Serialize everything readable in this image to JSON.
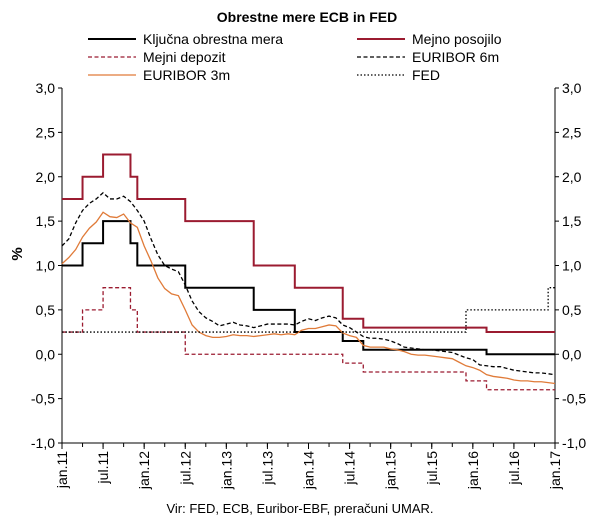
{
  "chart_data": {
    "type": "line",
    "title": "Obrestne mere ECB in FED",
    "ylabel": "%",
    "source": "Vir: FED, ECB, Euribor-EBF, preračuni UMAR.",
    "ylim": [
      -1.0,
      3.0
    ],
    "xlim": [
      "2011-01",
      "2017-01"
    ],
    "y_ticks": [
      "3,0",
      "2,5",
      "2,0",
      "1,5",
      "1,0",
      "0,5",
      "0,0",
      "-0,5",
      "-1,0"
    ],
    "y_tick_values": [
      3.0,
      2.5,
      2.0,
      1.5,
      1.0,
      0.5,
      0.0,
      -0.5,
      -1.0
    ],
    "x_ticks": [
      "jan.11",
      "jul.11",
      "jan.12",
      "jul.12",
      "jan.13",
      "jul.13",
      "jan.14",
      "jul.14",
      "jan.15",
      "jul.15",
      "jan.16",
      "jul.16",
      "jan.17"
    ],
    "x_tick_dates": [
      "2011-01",
      "2011-07",
      "2012-01",
      "2012-07",
      "2013-01",
      "2013-07",
      "2014-01",
      "2014-07",
      "2015-01",
      "2015-07",
      "2016-01",
      "2016-07",
      "2017-01"
    ],
    "grid": false,
    "legend_position": "top",
    "series": [
      {
        "name": "Ključna obrestna mera",
        "color": "#000000",
        "style": "solid",
        "step": true,
        "points": [
          [
            "2011-01",
            1.0
          ],
          [
            "2011-04",
            1.25
          ],
          [
            "2011-07",
            1.5
          ],
          [
            "2011-11",
            1.25
          ],
          [
            "2011-12",
            1.0
          ],
          [
            "2012-07",
            0.75
          ],
          [
            "2013-05",
            0.5
          ],
          [
            "2013-11",
            0.25
          ],
          [
            "2014-06",
            0.15
          ],
          [
            "2014-09",
            0.05
          ],
          [
            "2016-03",
            0.0
          ],
          [
            "2017-01",
            0.0
          ]
        ]
      },
      {
        "name": "Mejno posojilo",
        "color": "#9b1b30",
        "style": "solid",
        "step": true,
        "points": [
          [
            "2011-01",
            1.75
          ],
          [
            "2011-04",
            2.0
          ],
          [
            "2011-07",
            2.25
          ],
          [
            "2011-11",
            2.0
          ],
          [
            "2011-12",
            1.75
          ],
          [
            "2012-07",
            1.5
          ],
          [
            "2013-05",
            1.0
          ],
          [
            "2013-11",
            0.75
          ],
          [
            "2014-06",
            0.4
          ],
          [
            "2014-09",
            0.3
          ],
          [
            "2015-12",
            0.3
          ],
          [
            "2016-03",
            0.25
          ],
          [
            "2017-01",
            0.25
          ]
        ]
      },
      {
        "name": "Mejni depozit",
        "color": "#9b1b30",
        "style": "dashed",
        "step": true,
        "points": [
          [
            "2011-01",
            0.25
          ],
          [
            "2011-04",
            0.5
          ],
          [
            "2011-07",
            0.75
          ],
          [
            "2011-11",
            0.5
          ],
          [
            "2011-12",
            0.25
          ],
          [
            "2012-07",
            0.0
          ],
          [
            "2014-06",
            -0.1
          ],
          [
            "2014-09",
            -0.2
          ],
          [
            "2015-12",
            -0.3
          ],
          [
            "2016-03",
            -0.4
          ],
          [
            "2017-01",
            -0.4
          ]
        ]
      },
      {
        "name": "EURIBOR 6m",
        "color": "#000000",
        "style": "dashed",
        "step": false,
        "points": [
          [
            "2011-01",
            1.22
          ],
          [
            "2011-02",
            1.3
          ],
          [
            "2011-03",
            1.48
          ],
          [
            "2011-04",
            1.62
          ],
          [
            "2011-05",
            1.7
          ],
          [
            "2011-06",
            1.75
          ],
          [
            "2011-07",
            1.82
          ],
          [
            "2011-08",
            1.75
          ],
          [
            "2011-09",
            1.75
          ],
          [
            "2011-10",
            1.78
          ],
          [
            "2011-11",
            1.72
          ],
          [
            "2011-12",
            1.62
          ],
          [
            "2012-01",
            1.5
          ],
          [
            "2012-02",
            1.3
          ],
          [
            "2012-03",
            1.12
          ],
          [
            "2012-04",
            1.0
          ],
          [
            "2012-05",
            0.96
          ],
          [
            "2012-06",
            0.93
          ],
          [
            "2012-07",
            0.78
          ],
          [
            "2012-08",
            0.6
          ],
          [
            "2012-09",
            0.48
          ],
          [
            "2012-10",
            0.41
          ],
          [
            "2012-11",
            0.37
          ],
          [
            "2012-12",
            0.32
          ],
          [
            "2013-01",
            0.34
          ],
          [
            "2013-02",
            0.36
          ],
          [
            "2013-03",
            0.33
          ],
          [
            "2013-04",
            0.32
          ],
          [
            "2013-05",
            0.3
          ],
          [
            "2013-06",
            0.32
          ],
          [
            "2013-07",
            0.34
          ],
          [
            "2013-08",
            0.34
          ],
          [
            "2013-09",
            0.34
          ],
          [
            "2013-10",
            0.34
          ],
          [
            "2013-11",
            0.33
          ],
          [
            "2013-12",
            0.37
          ],
          [
            "2014-01",
            0.4
          ],
          [
            "2014-02",
            0.38
          ],
          [
            "2014-03",
            0.41
          ],
          [
            "2014-04",
            0.43
          ],
          [
            "2014-05",
            0.41
          ],
          [
            "2014-06",
            0.33
          ],
          [
            "2014-07",
            0.3
          ],
          [
            "2014-08",
            0.25
          ],
          [
            "2014-09",
            0.2
          ],
          [
            "2014-10",
            0.18
          ],
          [
            "2014-11",
            0.18
          ],
          [
            "2014-12",
            0.17
          ],
          [
            "2015-01",
            0.15
          ],
          [
            "2015-02",
            0.12
          ],
          [
            "2015-03",
            0.08
          ],
          [
            "2015-04",
            0.07
          ],
          [
            "2015-05",
            0.06
          ],
          [
            "2015-06",
            0.05
          ],
          [
            "2015-07",
            0.05
          ],
          [
            "2015-08",
            0.04
          ],
          [
            "2015-09",
            0.03
          ],
          [
            "2015-10",
            0.02
          ],
          [
            "2015-11",
            -0.01
          ],
          [
            "2015-12",
            -0.04
          ],
          [
            "2016-01",
            -0.06
          ],
          [
            "2016-02",
            -0.12
          ],
          [
            "2016-03",
            -0.13
          ],
          [
            "2016-04",
            -0.14
          ],
          [
            "2016-05",
            -0.14
          ],
          [
            "2016-06",
            -0.16
          ],
          [
            "2016-07",
            -0.18
          ],
          [
            "2016-08",
            -0.19
          ],
          [
            "2016-09",
            -0.2
          ],
          [
            "2016-10",
            -0.21
          ],
          [
            "2016-11",
            -0.21
          ],
          [
            "2016-12",
            -0.22
          ],
          [
            "2017-01",
            -0.23
          ]
        ]
      },
      {
        "name": "EURIBOR 3m",
        "color": "#e07b39",
        "style": "solid",
        "step": false,
        "points": [
          [
            "2011-01",
            1.02
          ],
          [
            "2011-02",
            1.09
          ],
          [
            "2011-03",
            1.18
          ],
          [
            "2011-04",
            1.32
          ],
          [
            "2011-05",
            1.42
          ],
          [
            "2011-06",
            1.49
          ],
          [
            "2011-07",
            1.6
          ],
          [
            "2011-08",
            1.55
          ],
          [
            "2011-09",
            1.54
          ],
          [
            "2011-10",
            1.58
          ],
          [
            "2011-11",
            1.48
          ],
          [
            "2011-12",
            1.43
          ],
          [
            "2012-01",
            1.22
          ],
          [
            "2012-02",
            1.05
          ],
          [
            "2012-03",
            0.86
          ],
          [
            "2012-04",
            0.74
          ],
          [
            "2012-05",
            0.68
          ],
          [
            "2012-06",
            0.66
          ],
          [
            "2012-07",
            0.5
          ],
          [
            "2012-08",
            0.33
          ],
          [
            "2012-09",
            0.25
          ],
          [
            "2012-10",
            0.21
          ],
          [
            "2012-11",
            0.19
          ],
          [
            "2012-12",
            0.19
          ],
          [
            "2013-01",
            0.2
          ],
          [
            "2013-02",
            0.22
          ],
          [
            "2013-03",
            0.21
          ],
          [
            "2013-04",
            0.21
          ],
          [
            "2013-05",
            0.2
          ],
          [
            "2013-06",
            0.21
          ],
          [
            "2013-07",
            0.22
          ],
          [
            "2013-08",
            0.23
          ],
          [
            "2013-09",
            0.22
          ],
          [
            "2013-10",
            0.23
          ],
          [
            "2013-11",
            0.22
          ],
          [
            "2013-12",
            0.27
          ],
          [
            "2014-01",
            0.29
          ],
          [
            "2014-02",
            0.29
          ],
          [
            "2014-03",
            0.31
          ],
          [
            "2014-04",
            0.33
          ],
          [
            "2014-05",
            0.32
          ],
          [
            "2014-06",
            0.24
          ],
          [
            "2014-07",
            0.21
          ],
          [
            "2014-08",
            0.19
          ],
          [
            "2014-09",
            0.1
          ],
          [
            "2014-10",
            0.08
          ],
          [
            "2014-11",
            0.08
          ],
          [
            "2014-12",
            0.08
          ],
          [
            "2015-01",
            0.06
          ],
          [
            "2015-02",
            0.05
          ],
          [
            "2015-03",
            0.03
          ],
          [
            "2015-04",
            0.0
          ],
          [
            "2015-05",
            -0.01
          ],
          [
            "2015-06",
            -0.01
          ],
          [
            "2015-07",
            -0.02
          ],
          [
            "2015-08",
            -0.03
          ],
          [
            "2015-09",
            -0.04
          ],
          [
            "2015-10",
            -0.05
          ],
          [
            "2015-11",
            -0.09
          ],
          [
            "2015-12",
            -0.13
          ],
          [
            "2016-01",
            -0.15
          ],
          [
            "2016-02",
            -0.18
          ],
          [
            "2016-03",
            -0.23
          ],
          [
            "2016-04",
            -0.25
          ],
          [
            "2016-05",
            -0.26
          ],
          [
            "2016-06",
            -0.27
          ],
          [
            "2016-07",
            -0.29
          ],
          [
            "2016-08",
            -0.3
          ],
          [
            "2016-09",
            -0.3
          ],
          [
            "2016-10",
            -0.31
          ],
          [
            "2016-11",
            -0.31
          ],
          [
            "2016-12",
            -0.32
          ],
          [
            "2017-01",
            -0.33
          ]
        ]
      },
      {
        "name": "FED",
        "color": "#000000",
        "style": "dotted",
        "step": true,
        "points": [
          [
            "2011-01",
            0.25
          ],
          [
            "2015-12",
            0.5
          ],
          [
            "2016-12",
            0.75
          ],
          [
            "2017-01",
            0.75
          ]
        ]
      }
    ]
  }
}
